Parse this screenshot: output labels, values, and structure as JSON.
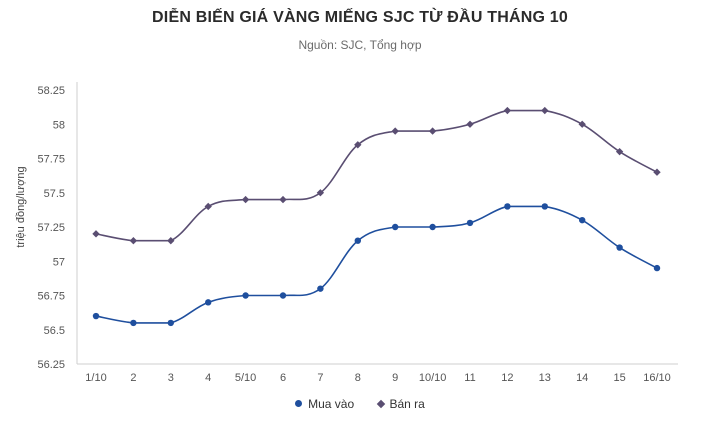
{
  "chart_data": {
    "type": "line",
    "title": "DIỄN BIẾN GIÁ VÀNG MIẾNG SJC TỪ ĐẦU THÁNG 10",
    "subtitle": "Nguồn: SJC, Tổng hợp",
    "xlabel": "",
    "ylabel": "triệu đồng/lượng",
    "ylim": [
      56.25,
      58.25
    ],
    "yticks": [
      56.25,
      56.5,
      56.75,
      57,
      57.25,
      57.5,
      57.75,
      58,
      58.25
    ],
    "ytick_labels": [
      "56.25",
      "56.5",
      "56.75",
      "57",
      "57.25",
      "57.5",
      "57.75",
      "58",
      "58.25"
    ],
    "categories": [
      "1/10",
      "2",
      "3",
      "4",
      "5/10",
      "6",
      "7",
      "8",
      "9",
      "10/10",
      "11",
      "12",
      "13",
      "14",
      "15",
      "16/10"
    ],
    "series": [
      {
        "name": "Mua vào",
        "color": "#1f4f9e",
        "marker": "circle",
        "values": [
          56.6,
          56.55,
          56.55,
          56.7,
          56.75,
          56.75,
          56.8,
          57.15,
          57.25,
          57.25,
          57.28,
          57.4,
          57.4,
          57.3,
          57.1,
          56.95
        ]
      },
      {
        "name": "Bán ra",
        "color": "#5a4e72",
        "marker": "diamond",
        "values": [
          57.2,
          57.15,
          57.15,
          57.4,
          57.45,
          57.45,
          57.5,
          57.85,
          57.95,
          57.95,
          58.0,
          58.1,
          58.1,
          58.0,
          57.8,
          57.65
        ]
      }
    ],
    "grid": false,
    "legend_position": "bottom-center"
  }
}
